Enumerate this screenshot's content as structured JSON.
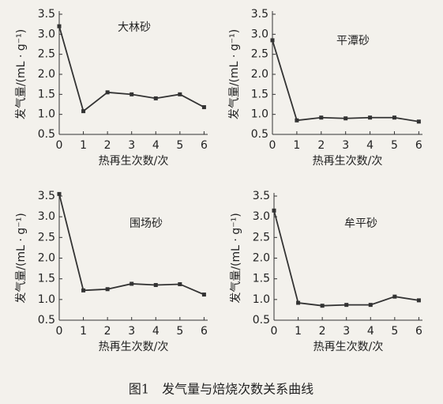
{
  "chart_data": [
    {
      "type": "line",
      "annotation": "大林砂",
      "xlabel": "热再生次数/次",
      "ylabel": "发气量/(mL · g⁻¹)",
      "color": "#333333",
      "x": [
        0,
        1,
        2,
        3,
        4,
        5,
        6
      ],
      "values": [
        3.2,
        1.08,
        1.55,
        1.5,
        1.4,
        1.5,
        1.18
      ],
      "xlim": [
        0,
        6.15
      ],
      "xticks": [
        0,
        1,
        2,
        3,
        4,
        5,
        6
      ],
      "ylim": [
        0.5,
        3.5
      ],
      "yticks": [
        0.5,
        {
          "value": 1,
          "label": "1.0"
        },
        1.5,
        {
          "value": 2,
          "label": "2.0"
        },
        2.5,
        {
          "value": 3,
          "label": "3.0"
        },
        3.5
      ]
    },
    {
      "type": "line",
      "annotation": "平潭砂",
      "xlabel": "热再生次数/次",
      "ylabel": "发气量/(mL · g⁻¹)",
      "color": "#333333",
      "x": [
        0,
        1,
        2,
        3,
        4,
        5,
        6
      ],
      "values": [
        2.85,
        0.85,
        0.92,
        0.9,
        0.92,
        0.92,
        0.82
      ],
      "xlim": [
        0,
        6.15
      ],
      "xticks": [
        0,
        1,
        2,
        3,
        4,
        5,
        6
      ],
      "ylim": [
        0.5,
        3.5
      ],
      "yticks": [
        0.5,
        {
          "value": 1,
          "label": "1.0"
        },
        1.5,
        {
          "value": 2,
          "label": "2.0"
        },
        2.5,
        {
          "value": 3,
          "label": "3.0"
        },
        3.5
      ]
    },
    {
      "type": "line",
      "annotation": "围场砂",
      "xlabel": "热再生次数/次",
      "ylabel": "发气量/(mL · g⁻¹)",
      "color": "#333333",
      "x": [
        0,
        1,
        2,
        3,
        4,
        5,
        6
      ],
      "values": [
        3.55,
        1.22,
        1.25,
        1.38,
        1.35,
        1.37,
        1.12
      ],
      "xlim": [
        0,
        6.15
      ],
      "xticks": [
        0,
        1,
        2,
        3,
        4,
        5,
        6
      ],
      "ylim": [
        0.5,
        3.5
      ],
      "yticks": [
        0.5,
        {
          "value": 1,
          "label": "1.0"
        },
        1.5,
        {
          "value": 2,
          "label": "2.0"
        },
        2.5,
        {
          "value": 3,
          "label": "3.0"
        },
        3.5
      ]
    },
    {
      "type": "line",
      "annotation": "牟平砂",
      "xlabel": "热再生次数/次",
      "ylabel": "发气量/(mL · g⁻¹)",
      "color": "#333333",
      "x": [
        0,
        1,
        2,
        3,
        4,
        5,
        6
      ],
      "values": [
        3.15,
        0.92,
        0.85,
        0.87,
        0.87,
        1.07,
        0.98
      ],
      "xlim": [
        0,
        6.15
      ],
      "xticks": [
        0,
        1,
        2,
        3,
        4,
        5,
        6
      ],
      "ylim": [
        0.5,
        3.5
      ],
      "yticks": [
        0.5,
        {
          "value": 1,
          "label": "1.0"
        },
        1.5,
        {
          "value": 2,
          "label": "2.0"
        },
        2.5,
        {
          "value": 3,
          "label": "3.0"
        },
        3.5
      ]
    }
  ],
  "caption": "图1　发气量与焙烧次数关系曲线"
}
